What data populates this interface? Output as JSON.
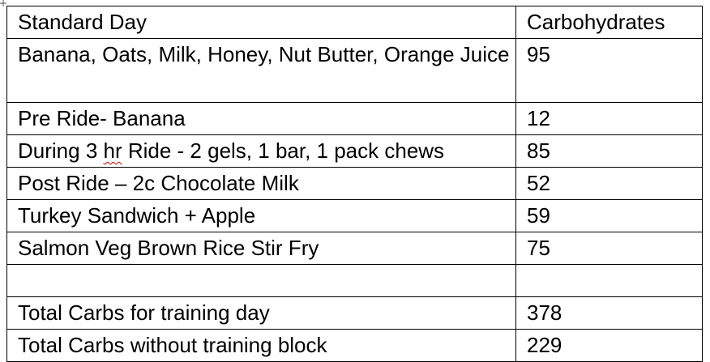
{
  "table": {
    "header": {
      "item": "Standard Day",
      "carbs": "Carbohydrates"
    },
    "rows": [
      {
        "item": "Banana, Oats, Milk, Honey, Nut Butter, Orange Juice",
        "carbs": "95"
      },
      {
        "item": "Pre Ride- Banana",
        "carbs": "12"
      },
      {
        "item_before": "During 3 ",
        "item_flagged": "hr",
        "item_after": " Ride - 2 gels, 1 bar, 1 pack chews",
        "carbs": "85"
      },
      {
        "item": "Post Ride – 2c Chocolate Milk",
        "carbs": "52"
      },
      {
        "item": "Turkey Sandwich + Apple",
        "carbs": "59"
      },
      {
        "item": "Salmon Veg Brown Rice Stir Fry",
        "carbs": "75"
      },
      {
        "item": "",
        "carbs": ""
      },
      {
        "item": "Total Carbs for training day",
        "carbs": "378"
      },
      {
        "item": "Total Carbs without training block",
        "carbs": "229"
      }
    ]
  }
}
